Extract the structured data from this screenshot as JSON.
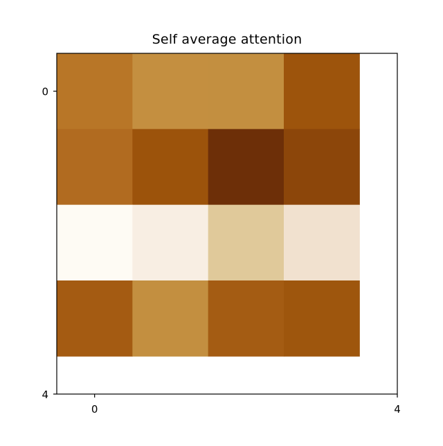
{
  "chart_data": {
    "type": "heatmap",
    "title": "Self average attention",
    "xlabel": "",
    "ylabel": "",
    "x_ticks": [
      0,
      4
    ],
    "y_ticks": [
      0,
      4
    ],
    "xlim": [
      -0.5,
      4
    ],
    "ylim": [
      4,
      -0.5
    ],
    "grid": false,
    "rows": 4,
    "cols": 4,
    "values": [
      [
        0.55,
        0.35,
        0.36,
        0.8
      ],
      [
        0.62,
        0.8,
        1.0,
        0.88
      ],
      [
        0.0,
        0.06,
        0.24,
        0.1
      ],
      [
        0.75,
        0.36,
        0.72,
        0.8
      ]
    ],
    "colors": [
      [
        "#b87627",
        "#c48f40",
        "#c38f40",
        "#9d540c"
      ],
      [
        "#b16b20",
        "#9c530b",
        "#6d2f08",
        "#8c460a"
      ],
      [
        "#fefbf4",
        "#f8eee3",
        "#e0c99a",
        "#f1e1cf"
      ],
      [
        "#a45b12",
        "#c38f40",
        "#a45c13",
        "#9e560d"
      ]
    ]
  }
}
